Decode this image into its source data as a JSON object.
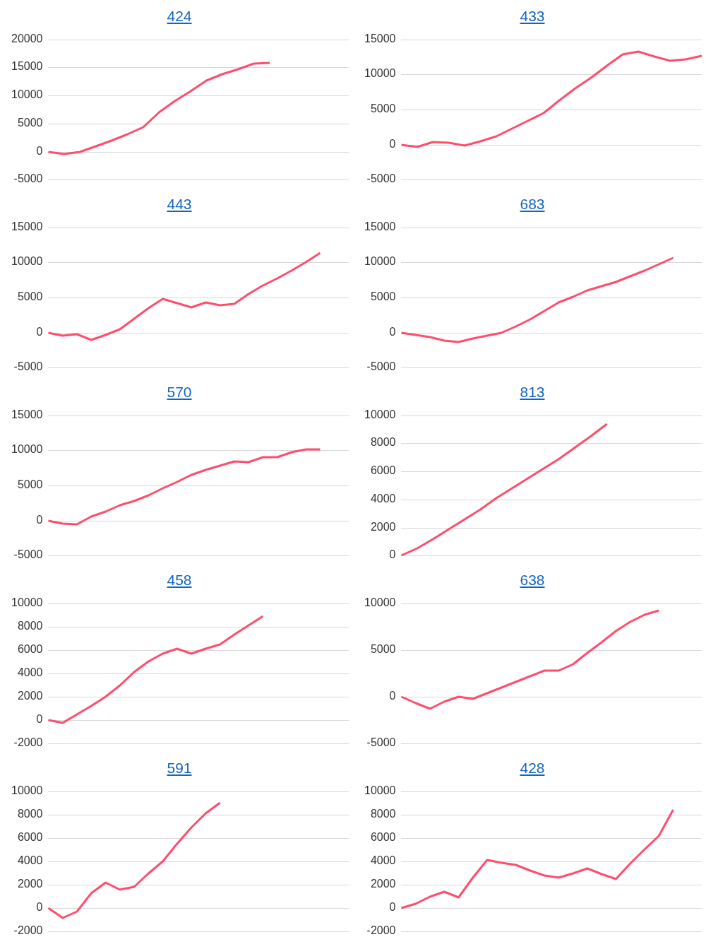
{
  "chart_data": [
    {
      "type": "line",
      "title": "424",
      "categories": [
        null,
        null,
        null,
        null,
        null,
        null,
        null,
        null,
        null,
        null,
        null,
        null,
        null,
        null,
        null,
        null,
        null,
        null,
        null,
        null
      ],
      "series": [
        {
          "color": "#ff4d6d",
          "values": [
            0,
            -400,
            -100,
            900,
            2000,
            3100,
            4300,
            7000,
            9000,
            10800,
            12700,
            13800,
            14700,
            15700,
            15800,
            null,
            null,
            null,
            null,
            null
          ]
        }
      ],
      "ylim": [
        -5000,
        20000
      ],
      "yticks": [
        -5000,
        0,
        5000,
        10000,
        15000,
        20000
      ],
      "grid": "y",
      "marker": "none"
    },
    {
      "type": "line",
      "title": "433",
      "categories": [
        null,
        null,
        null,
        null,
        null,
        null,
        null,
        null,
        null,
        null,
        null,
        null,
        null,
        null,
        null,
        null,
        null,
        null,
        null,
        null
      ],
      "series": [
        {
          "color": "#ff4d6d",
          "values": [
            0,
            -300,
            400,
            300,
            -100,
            500,
            1200,
            2300,
            3400,
            4500,
            6300,
            8000,
            9500,
            11200,
            12800,
            13200,
            12500,
            11900,
            12100,
            12600
          ]
        }
      ],
      "ylim": [
        -5000,
        15000
      ],
      "yticks": [
        -5000,
        0,
        5000,
        10000,
        15000
      ],
      "grid": "y",
      "marker": "none"
    },
    {
      "type": "line",
      "title": "443",
      "categories": [
        null,
        null,
        null,
        null,
        null,
        null,
        null,
        null,
        null,
        null,
        null,
        null,
        null,
        null,
        null,
        null,
        null,
        null,
        null,
        null,
        null,
        null
      ],
      "series": [
        {
          "color": "#ff4d6d",
          "values": [
            0,
            -400,
            -200,
            -1000,
            -300,
            500,
            2000,
            3500,
            4800,
            4200,
            3600,
            4300,
            3900,
            4100,
            5500,
            6700,
            7700,
            8800,
            10000,
            11300,
            null,
            null
          ]
        }
      ],
      "ylim": [
        -5000,
        15000
      ],
      "yticks": [
        -5000,
        0,
        5000,
        10000,
        15000
      ],
      "grid": "y",
      "marker": "none"
    },
    {
      "type": "line",
      "title": "683",
      "categories": [
        null,
        null,
        null,
        null,
        null,
        null,
        null,
        null,
        null,
        null,
        null,
        null,
        null,
        null,
        null,
        null,
        null,
        null,
        null,
        null,
        null,
        null
      ],
      "series": [
        {
          "color": "#ff4d6d",
          "values": [
            0,
            -300,
            -600,
            -1100,
            -1300,
            -800,
            -400,
            0,
            900,
            1900,
            3100,
            4300,
            5100,
            6000,
            6600,
            7200,
            8000,
            8800,
            9700,
            10600,
            null,
            null
          ]
        }
      ],
      "ylim": [
        -5000,
        15000
      ],
      "yticks": [
        -5000,
        0,
        5000,
        10000,
        15000
      ],
      "grid": "y",
      "marker": "none"
    },
    {
      "type": "line",
      "title": "570",
      "categories": [
        null,
        null,
        null,
        null,
        null,
        null,
        null,
        null,
        null,
        null,
        null,
        null,
        null,
        null,
        null,
        null,
        null,
        null,
        null,
        null,
        null,
        null
      ],
      "series": [
        {
          "color": "#ff4d6d",
          "values": [
            0,
            -400,
            -500,
            600,
            1300,
            2200,
            2800,
            3600,
            4600,
            5500,
            6500,
            7200,
            7800,
            8400,
            8300,
            9000,
            9000,
            9700,
            10100,
            10100,
            null,
            null
          ]
        }
      ],
      "ylim": [
        -5000,
        15000
      ],
      "yticks": [
        -5000,
        0,
        5000,
        10000,
        15000
      ],
      "grid": "y",
      "marker": "none"
    },
    {
      "type": "line",
      "title": "813",
      "categories": [
        null,
        null,
        null,
        null,
        null,
        null,
        null,
        null,
        null,
        null,
        null,
        null,
        null,
        null,
        null,
        null,
        null,
        null,
        null,
        null
      ],
      "series": [
        {
          "color": "#ff4d6d",
          "values": [
            0,
            500,
            1200,
            1900,
            2600,
            3300,
            4100,
            4800,
            5500,
            6200,
            6900,
            7700,
            8500,
            9400,
            null,
            null,
            null,
            null,
            null,
            null
          ]
        }
      ],
      "ylim": [
        0,
        10000
      ],
      "yticks": [
        0,
        2000,
        4000,
        6000,
        8000,
        10000
      ],
      "grid": "y",
      "marker": "none"
    },
    {
      "type": "line",
      "title": "458",
      "categories": [
        null,
        null,
        null,
        null,
        null,
        null,
        null,
        null,
        null,
        null,
        null,
        null,
        null,
        null,
        null,
        null,
        null,
        null,
        null,
        null,
        null,
        null
      ],
      "series": [
        {
          "color": "#ff4d6d",
          "values": [
            0,
            -200,
            500,
            1200,
            2000,
            3000,
            4100,
            5000,
            5700,
            6100,
            5700,
            6100,
            6500,
            7300,
            8100,
            8900,
            null,
            null,
            null,
            null,
            null,
            null
          ]
        }
      ],
      "ylim": [
        -2000,
        10000
      ],
      "yticks": [
        -2000,
        0,
        2000,
        4000,
        6000,
        8000,
        10000
      ],
      "grid": "y",
      "marker": "none"
    },
    {
      "type": "line",
      "title": "638",
      "categories": [
        null,
        null,
        null,
        null,
        null,
        null,
        null,
        null,
        null,
        null,
        null,
        null,
        null,
        null,
        null,
        null,
        null,
        null,
        null,
        null,
        null,
        null
      ],
      "series": [
        {
          "color": "#ff4d6d",
          "values": [
            0,
            -700,
            -1300,
            -500,
            0,
            -200,
            400,
            1000,
            1600,
            2200,
            2800,
            2800,
            3500,
            4700,
            5800,
            7000,
            8000,
            8800,
            9200,
            null,
            null,
            null
          ]
        }
      ],
      "ylim": [
        -5000,
        10000
      ],
      "yticks": [
        -5000,
        0,
        5000,
        10000
      ],
      "grid": "y",
      "marker": "none"
    },
    {
      "type": "line",
      "title": "591",
      "categories": [
        null,
        null,
        null,
        null,
        null,
        null,
        null,
        null,
        null,
        null,
        null,
        null,
        null,
        null,
        null,
        null,
        null,
        null,
        null,
        null,
        null,
        null
      ],
      "series": [
        {
          "color": "#ff4d6d",
          "values": [
            0,
            -800,
            -300,
            1300,
            2200,
            1600,
            1800,
            3000,
            4000,
            5500,
            6900,
            8100,
            9000,
            null,
            null,
            null,
            null,
            null,
            null,
            null,
            null,
            null
          ]
        }
      ],
      "ylim": [
        -2000,
        10000
      ],
      "yticks": [
        -2000,
        0,
        2000,
        4000,
        6000,
        8000,
        10000
      ],
      "grid": "y",
      "marker": "none"
    },
    {
      "type": "line",
      "title": "428",
      "categories": [
        null,
        null,
        null,
        null,
        null,
        null,
        null,
        null,
        null,
        null,
        null,
        null,
        null,
        null,
        null,
        null,
        null,
        null,
        null,
        null,
        null,
        null
      ],
      "series": [
        {
          "color": "#ff4d6d",
          "values": [
            0,
            400,
            1000,
            1400,
            900,
            2600,
            4100,
            3900,
            3700,
            3200,
            2800,
            2600,
            3000,
            3400,
            2900,
            2500,
            3800,
            5000,
            6200,
            8400,
            null,
            null
          ]
        }
      ],
      "ylim": [
        -2000,
        10000
      ],
      "yticks": [
        -2000,
        0,
        2000,
        4000,
        6000,
        8000,
        10000
      ],
      "grid": "y",
      "marker": "none"
    }
  ]
}
